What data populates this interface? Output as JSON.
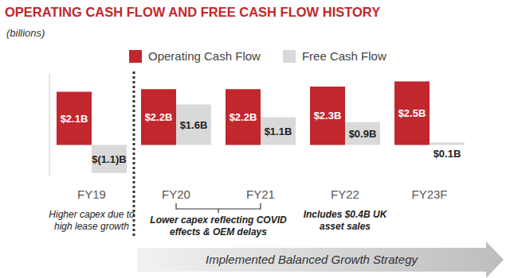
{
  "chart_data": {
    "type": "bar",
    "title": "OPERATING CASH FLOW AND FREE CASH FLOW HISTORY",
    "subtitle": "(billions)",
    "categories": [
      "FY19",
      "FY20",
      "FY21",
      "FY22",
      "FY23F"
    ],
    "series": [
      {
        "name": "Operating Cash Flow",
        "color": "#c1272d",
        "values": [
          2.1,
          2.2,
          2.2,
          2.3,
          2.5
        ],
        "value_labels": [
          "$2.1B",
          "$2.2B",
          "$2.2B",
          "$2.3B",
          "$2.5B"
        ]
      },
      {
        "name": "Free Cash Flow",
        "color": "#d9d9d9",
        "values": [
          -1.1,
          1.6,
          1.1,
          0.9,
          0.1
        ],
        "value_labels": [
          "$(1.1)B",
          "$1.6B",
          "$1.1B",
          "$0.9B",
          "$0.1B"
        ]
      }
    ],
    "ylim": [
      -1.2,
      2.8
    ],
    "data_labels": true,
    "tick_labels": "x",
    "grid": false,
    "legend": "top",
    "annotations": [
      {
        "text": "Higher capex due to high lease growth",
        "categories": [
          "FY19"
        ]
      },
      {
        "text": "Lower capex reflecting COVID effects & OEM delays",
        "categories": [
          "FY20",
          "FY21"
        ]
      },
      {
        "text": "Includes $0.4B UK asset sales",
        "categories": [
          "FY22"
        ]
      },
      {
        "text": "Implemented Balanced Growth Strategy",
        "categories": [
          "FY20",
          "FY23F"
        ]
      }
    ]
  }
}
